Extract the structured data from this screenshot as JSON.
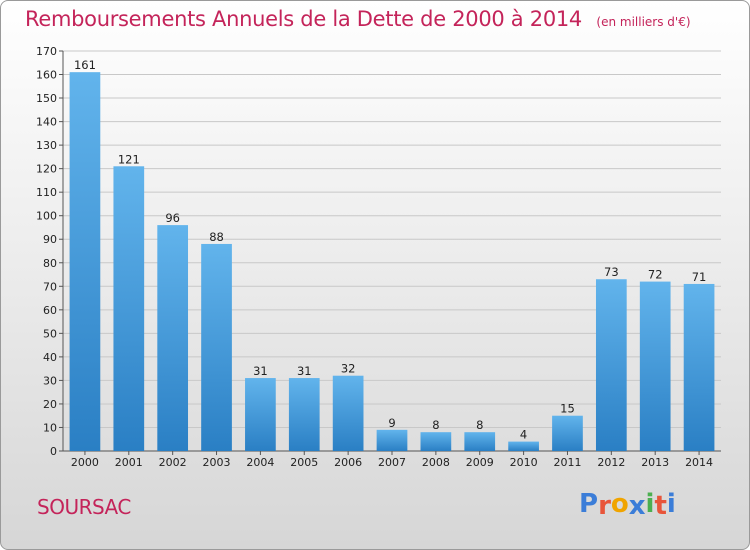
{
  "title": "Remboursements Annuels de la Dette de 2000 à 2014",
  "subtitle": "(en milliers d'€)",
  "commune": "SOURSAC",
  "logo": {
    "letters": [
      "P",
      "r",
      "o",
      "x",
      "i",
      "t",
      "i"
    ],
    "colors": [
      "#3b7dd8",
      "#e8553a",
      "#f0a400",
      "#3b7dd8",
      "#4caf50",
      "#e8553a",
      "#3b7dd8"
    ]
  },
  "colors": {
    "bar_light": "#62b4ec",
    "bar_dark": "#2a7fc4",
    "title": "#c4245a",
    "grid": "#c8c8c8"
  },
  "chart_data": {
    "type": "bar",
    "title": "Remboursements Annuels de la Dette de 2000 à 2014",
    "subtitle": "(en milliers d'€)",
    "categories": [
      "2000",
      "2001",
      "2002",
      "2003",
      "2004",
      "2005",
      "2006",
      "2007",
      "2008",
      "2009",
      "2010",
      "2011",
      "2012",
      "2013",
      "2014"
    ],
    "values": [
      161,
      121,
      96,
      88,
      31,
      31,
      32,
      9,
      8,
      8,
      4,
      15,
      73,
      72,
      71
    ],
    "ylim": [
      0,
      170
    ],
    "yticks": [
      0,
      10,
      20,
      30,
      40,
      50,
      60,
      70,
      80,
      90,
      100,
      110,
      120,
      130,
      140,
      150,
      160,
      170
    ],
    "grid": true,
    "xlabel": "",
    "ylabel": ""
  }
}
